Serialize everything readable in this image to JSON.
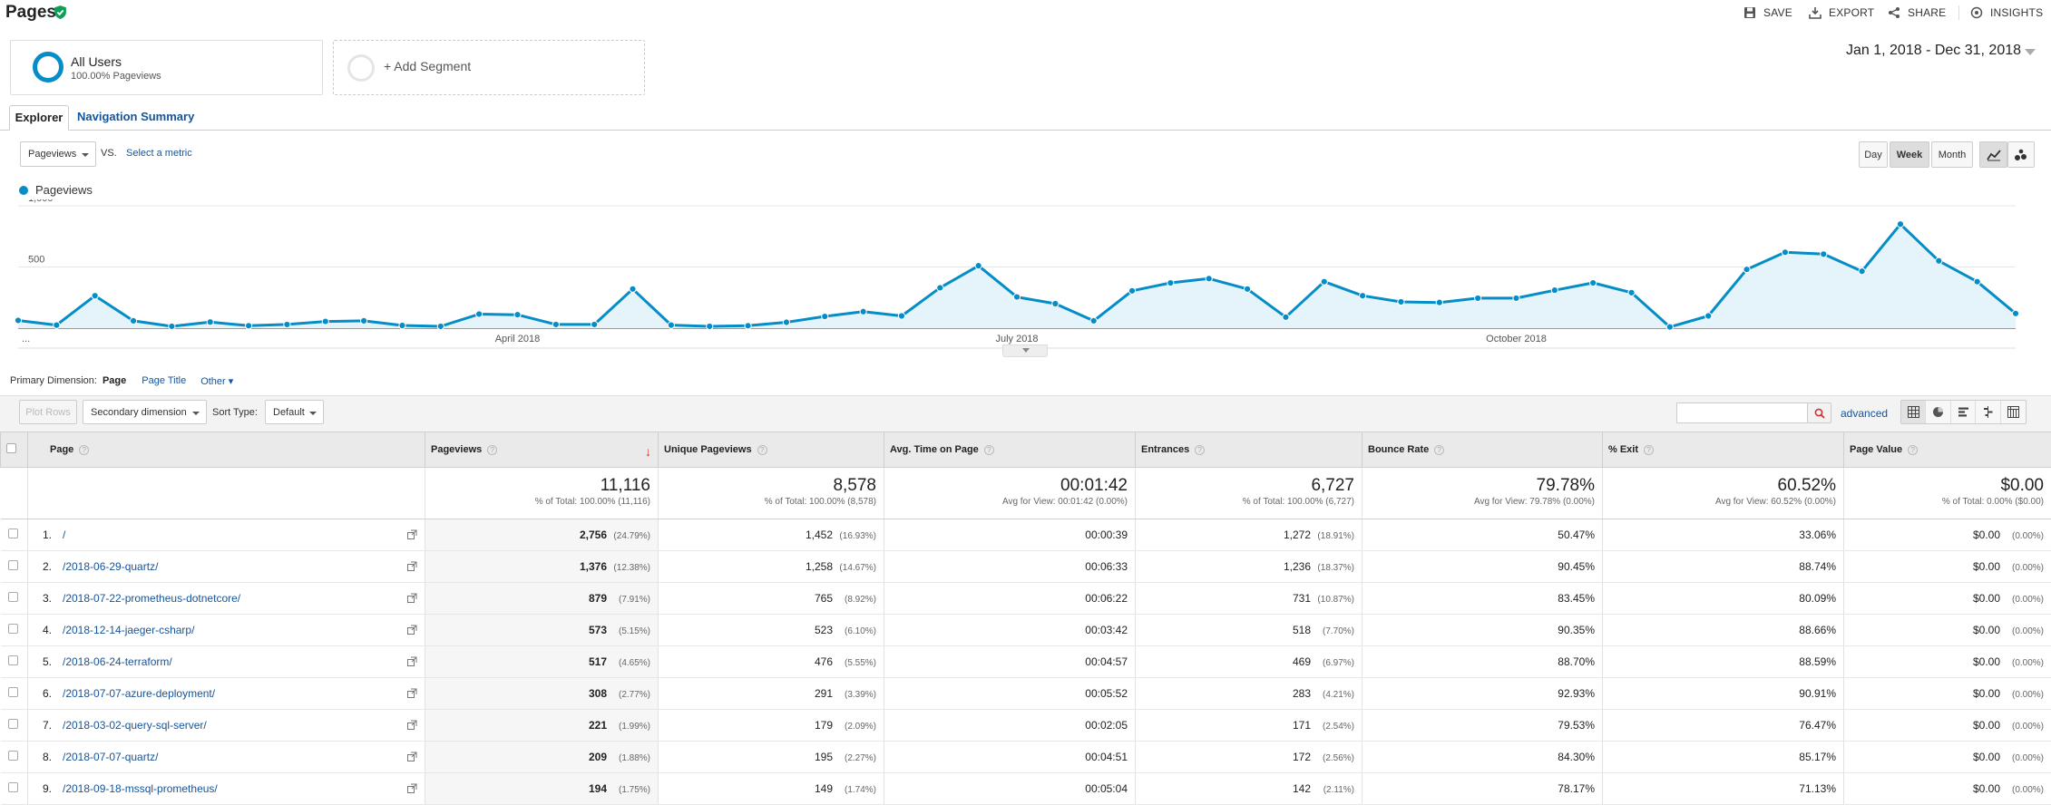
{
  "header": {
    "title": "Pages",
    "actions": [
      {
        "label": "SAVE",
        "icon": "save-icon"
      },
      {
        "label": "EXPORT",
        "icon": "export-icon"
      },
      {
        "label": "SHARE",
        "icon": "share-icon"
      },
      {
        "label": "INSIGHTS",
        "icon": "insights-icon"
      }
    ]
  },
  "segments": {
    "active": {
      "name": "All Users",
      "sub": "100.00% Pageviews"
    },
    "add_label": "+ Add Segment"
  },
  "date_range": "Jan 1, 2018 - Dec 31, 2018",
  "tabs": {
    "explorer": "Explorer",
    "navigation": "Navigation Summary"
  },
  "chart_controls": {
    "metric": "Pageviews",
    "vs": "VS.",
    "select_metric": "Select a metric",
    "day": "Day",
    "week": "Week",
    "month": "Month"
  },
  "colors": {
    "accent": "#058dc7",
    "link": "#15549a"
  },
  "chart_data": {
    "type": "area",
    "series": [
      {
        "name": "Pageviews",
        "values": [
          63,
          25,
          265,
          60,
          15,
          50,
          20,
          30,
          55,
          60,
          22,
          15,
          115,
          110,
          30,
          30,
          320,
          25,
          15,
          20,
          48,
          96,
          135,
          100,
          330,
          510,
          255,
          200,
          60,
          305,
          370,
          405,
          320,
          90,
          380,
          265,
          215,
          210,
          245,
          245,
          310,
          370,
          290,
          10,
          100,
          480,
          620,
          605,
          465,
          850,
          550,
          380,
          120
        ]
      }
    ],
    "x_tick_labels": [
      "...",
      "April 2018",
      "July 2018",
      "October 2018"
    ],
    "y_tick_labels": [
      "1,000",
      "500"
    ],
    "ylim": [
      0,
      1000
    ],
    "grid": true,
    "legend_position": "top-left"
  },
  "primary_dimension": {
    "label": "Primary Dimension:",
    "page": "Page",
    "page_title": "Page Title",
    "other": "Other"
  },
  "table_toolbar": {
    "plot_rows": "Plot Rows",
    "secondary": "Secondary dimension",
    "sort_type_label": "Sort Type:",
    "sort_type": "Default",
    "advanced": "advanced"
  },
  "table": {
    "headers": [
      "Page",
      "Pageviews",
      "Unique Pageviews",
      "Avg. Time on Page",
      "Entrances",
      "Bounce Rate",
      "% Exit",
      "Page Value"
    ],
    "totals": [
      {
        "value": "11,116",
        "sub": "% of Total: 100.00% (11,116)"
      },
      {
        "value": "8,578",
        "sub": "% of Total: 100.00% (8,578)"
      },
      {
        "value": "00:01:42",
        "sub": "Avg for View: 00:01:42 (0.00%)"
      },
      {
        "value": "6,727",
        "sub": "% of Total: 100.00% (6,727)"
      },
      {
        "value": "79.78%",
        "sub": "Avg for View: 79.78% (0.00%)"
      },
      {
        "value": "60.52%",
        "sub": "Avg for View: 60.52% (0.00%)"
      },
      {
        "value": "$0.00",
        "sub": "% of Total: 0.00% ($0.00)"
      }
    ],
    "rows": [
      {
        "idx": "1.",
        "page": "/",
        "pv": "2,756",
        "pv_pct": "(24.79%)",
        "upv": "1,452",
        "upv_pct": "(16.93%)",
        "time": "00:00:39",
        "ent": "1,272",
        "ent_pct": "(18.91%)",
        "bounce": "50.47%",
        "exit": "33.06%",
        "value": "$0.00",
        "value_pct": "(0.00%)"
      },
      {
        "idx": "2.",
        "page": "/2018-06-29-quartz/",
        "pv": "1,376",
        "pv_pct": "(12.38%)",
        "upv": "1,258",
        "upv_pct": "(14.67%)",
        "time": "00:06:33",
        "ent": "1,236",
        "ent_pct": "(18.37%)",
        "bounce": "90.45%",
        "exit": "88.74%",
        "value": "$0.00",
        "value_pct": "(0.00%)"
      },
      {
        "idx": "3.",
        "page": "/2018-07-22-prometheus-dotnetcore/",
        "pv": "879",
        "pv_pct": "(7.91%)",
        "upv": "765",
        "upv_pct": "(8.92%)",
        "time": "00:06:22",
        "ent": "731",
        "ent_pct": "(10.87%)",
        "bounce": "83.45%",
        "exit": "80.09%",
        "value": "$0.00",
        "value_pct": "(0.00%)"
      },
      {
        "idx": "4.",
        "page": "/2018-12-14-jaeger-csharp/",
        "pv": "573",
        "pv_pct": "(5.15%)",
        "upv": "523",
        "upv_pct": "(6.10%)",
        "time": "00:03:42",
        "ent": "518",
        "ent_pct": "(7.70%)",
        "bounce": "90.35%",
        "exit": "88.66%",
        "value": "$0.00",
        "value_pct": "(0.00%)"
      },
      {
        "idx": "5.",
        "page": "/2018-06-24-terraform/",
        "pv": "517",
        "pv_pct": "(4.65%)",
        "upv": "476",
        "upv_pct": "(5.55%)",
        "time": "00:04:57",
        "ent": "469",
        "ent_pct": "(6.97%)",
        "bounce": "88.70%",
        "exit": "88.59%",
        "value": "$0.00",
        "value_pct": "(0.00%)"
      },
      {
        "idx": "6.",
        "page": "/2018-07-07-azure-deployment/",
        "pv": "308",
        "pv_pct": "(2.77%)",
        "upv": "291",
        "upv_pct": "(3.39%)",
        "time": "00:05:52",
        "ent": "283",
        "ent_pct": "(4.21%)",
        "bounce": "92.93%",
        "exit": "90.91%",
        "value": "$0.00",
        "value_pct": "(0.00%)"
      },
      {
        "idx": "7.",
        "page": "/2018-03-02-query-sql-server/",
        "pv": "221",
        "pv_pct": "(1.99%)",
        "upv": "179",
        "upv_pct": "(2.09%)",
        "time": "00:02:05",
        "ent": "171",
        "ent_pct": "(2.54%)",
        "bounce": "79.53%",
        "exit": "76.47%",
        "value": "$0.00",
        "value_pct": "(0.00%)"
      },
      {
        "idx": "8.",
        "page": "/2018-07-07-quartz/",
        "pv": "209",
        "pv_pct": "(1.88%)",
        "upv": "195",
        "upv_pct": "(2.27%)",
        "time": "00:04:51",
        "ent": "172",
        "ent_pct": "(2.56%)",
        "bounce": "84.30%",
        "exit": "85.17%",
        "value": "$0.00",
        "value_pct": "(0.00%)"
      },
      {
        "idx": "9.",
        "page": "/2018-09-18-mssql-prometheus/",
        "pv": "194",
        "pv_pct": "(1.75%)",
        "upv": "149",
        "upv_pct": "(1.74%)",
        "time": "00:05:04",
        "ent": "142",
        "ent_pct": "(2.11%)",
        "bounce": "78.17%",
        "exit": "71.13%",
        "value": "$0.00",
        "value_pct": "(0.00%)"
      }
    ]
  }
}
